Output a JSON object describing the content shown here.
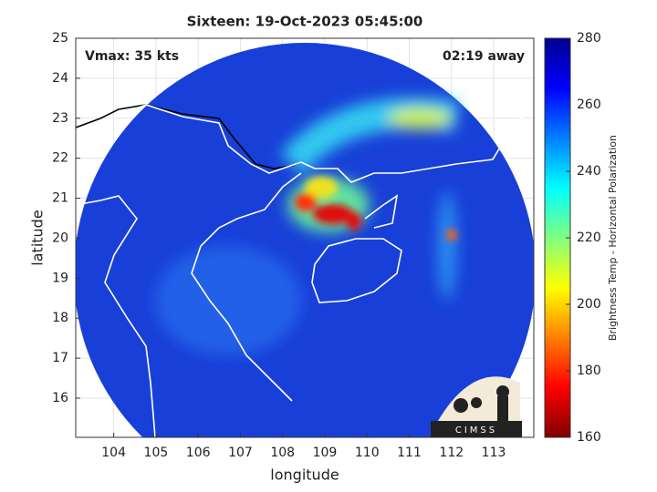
{
  "map": {
    "title": "Sixteen: 19-Oct-2023 05:45:00",
    "annotations": [
      "Vmax: 35 kts",
      "02:19 away"
    ],
    "xlabel": "longitude",
    "ylabel": "latitude",
    "xlim": [
      103.1,
      113.95
    ],
    "ylim": [
      15.02,
      25
    ],
    "xticks": [
      104,
      105,
      106,
      107,
      108,
      109,
      110,
      111,
      112,
      113
    ],
    "yticks": [
      16,
      17,
      18,
      19,
      20,
      21,
      22,
      23,
      24,
      25
    ],
    "grid": true
  },
  "colorbar": {
    "label": "Brightness Temp - Horizontal Polarization",
    "lim": [
      160,
      280
    ],
    "ticks": [
      160,
      180,
      200,
      220,
      240,
      260,
      280
    ],
    "colormap": [
      "#800000",
      "#ff0000",
      "#ff8000",
      "#ffff00",
      "#80ff80",
      "#00ffff",
      "#0080ff",
      "#0000ff",
      "#00008f"
    ]
  },
  "logo": "CIMSS"
}
